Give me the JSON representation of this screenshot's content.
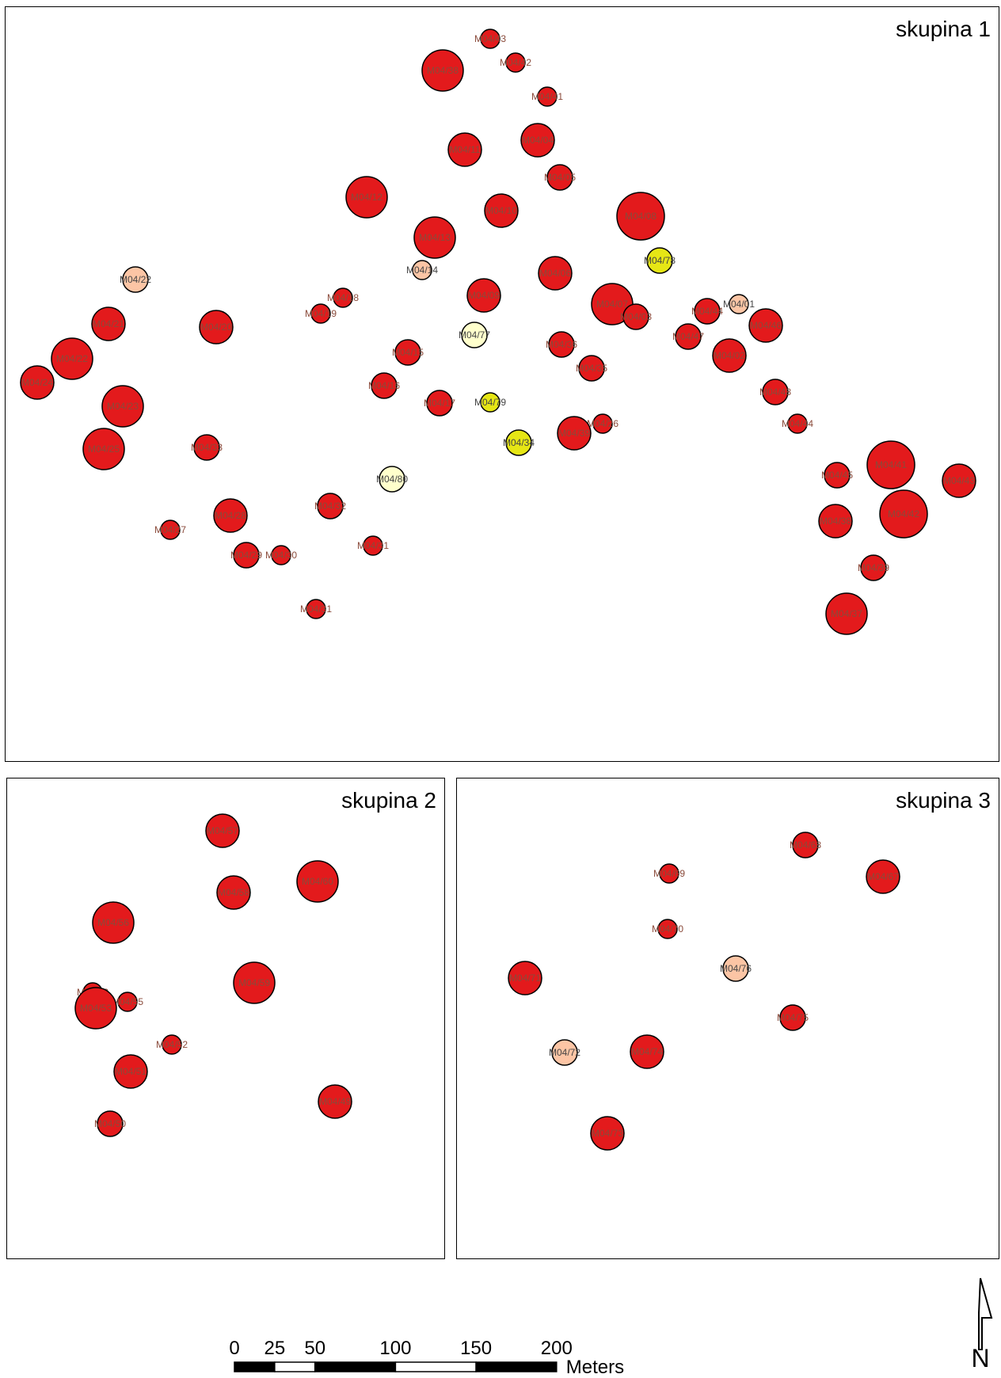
{
  "panels": [
    {
      "id": "1",
      "title": "skupina 1"
    },
    {
      "id": "2",
      "title": "skupina 2"
    },
    {
      "id": "3",
      "title": "skupina 3"
    }
  ],
  "legend_colors": {
    "red": "#e31a1c",
    "peach": "#fcc5a5",
    "cream": "#ffffcc",
    "yellow": "#e6e615",
    "stroke": "#000000"
  },
  "scalebar": {
    "ticks": [
      "0",
      "25",
      "50",
      "100",
      "150",
      "200"
    ],
    "unit": "Meters"
  },
  "north_arrow": {
    "letter": "N"
  },
  "points": {
    "1": [
      {
        "label": "M04/43",
        "color": "red",
        "size": "xs"
      },
      {
        "label": "M04/42",
        "color": "red",
        "size": "xs"
      },
      {
        "label": "M04/38",
        "color": "red",
        "size": "lg"
      },
      {
        "label": "M04/41",
        "color": "red",
        "size": "xs"
      },
      {
        "label": "M04/04",
        "color": "red",
        "size": "md"
      },
      {
        "label": "M04/11",
        "color": "red",
        "size": "md"
      },
      {
        "label": "M04/05",
        "color": "red",
        "size": "sm"
      },
      {
        "label": "M04/12",
        "color": "red",
        "size": "lg"
      },
      {
        "label": "M04/10",
        "color": "red",
        "size": "md"
      },
      {
        "label": "M04/08",
        "color": "red",
        "size": "xl"
      },
      {
        "label": "M04/13",
        "color": "red",
        "size": "lg"
      },
      {
        "label": "M04/78",
        "color": "yellow",
        "size": "sm"
      },
      {
        "label": "M04/14",
        "color": "peach",
        "size": "xs"
      },
      {
        "label": "M04/22",
        "color": "peach",
        "size": "sm"
      },
      {
        "label": "M04/06",
        "color": "red",
        "size": "md"
      },
      {
        "label": "M04/09",
        "color": "red",
        "size": "md"
      },
      {
        "label": "M04/18",
        "color": "red",
        "size": "xs"
      },
      {
        "label": "M04/07",
        "color": "red",
        "size": "lg"
      },
      {
        "label": "M04/01",
        "color": "peach",
        "size": "xs"
      },
      {
        "label": "M04/19",
        "color": "red",
        "size": "xs"
      },
      {
        "label": "M04/03",
        "color": "red",
        "size": "sm"
      },
      {
        "label": "M04/44",
        "color": "red",
        "size": "sm"
      },
      {
        "label": "M04/21",
        "color": "red",
        "size": "md"
      },
      {
        "label": "M04/20",
        "color": "red",
        "size": "md"
      },
      {
        "label": "M04/77",
        "color": "cream",
        "size": "sm"
      },
      {
        "label": "M04/46",
        "color": "red",
        "size": "md"
      },
      {
        "label": "M04/47",
        "color": "red",
        "size": "sm"
      },
      {
        "label": "M04/36",
        "color": "red",
        "size": "sm"
      },
      {
        "label": "M04/02",
        "color": "red",
        "size": "md"
      },
      {
        "label": "M04/22",
        "color": "red",
        "size": "lg"
      },
      {
        "label": "M04/15",
        "color": "red",
        "size": "sm"
      },
      {
        "label": "M04/35",
        "color": "red",
        "size": "sm"
      },
      {
        "label": "M04/24",
        "color": "red",
        "size": "md"
      },
      {
        "label": "M04/16",
        "color": "red",
        "size": "sm"
      },
      {
        "label": "M04/48",
        "color": "red",
        "size": "sm"
      },
      {
        "label": "M04/17",
        "color": "red",
        "size": "sm"
      },
      {
        "label": "M04/79",
        "color": "yellow",
        "size": "xs"
      },
      {
        "label": "M04/23",
        "color": "red",
        "size": "lg"
      },
      {
        "label": "M04/44",
        "color": "red",
        "size": "xs"
      },
      {
        "label": "M04/26",
        "color": "red",
        "size": "xs"
      },
      {
        "label": "M04/39",
        "color": "red",
        "size": "md"
      },
      {
        "label": "M04/25",
        "color": "red",
        "size": "lg"
      },
      {
        "label": "M04/33",
        "color": "red",
        "size": "sm"
      },
      {
        "label": "M04/34",
        "color": "yellow",
        "size": "sm"
      },
      {
        "label": "M04/41",
        "color": "red",
        "size": "xl"
      },
      {
        "label": "M04/80",
        "color": "cream",
        "size": "sm"
      },
      {
        "label": "M04/45",
        "color": "red",
        "size": "sm"
      },
      {
        "label": "M04/43",
        "color": "red",
        "size": "md"
      },
      {
        "label": "M04/32",
        "color": "red",
        "size": "sm"
      },
      {
        "label": "M04/28",
        "color": "red",
        "size": "md"
      },
      {
        "label": "M04/42",
        "color": "red",
        "size": "xl"
      },
      {
        "label": "M04/38",
        "color": "red",
        "size": "md"
      },
      {
        "label": "M04/27",
        "color": "red",
        "size": "xs"
      },
      {
        "label": "M04/31",
        "color": "red",
        "size": "xs"
      },
      {
        "label": "M04/29",
        "color": "red",
        "size": "sm"
      },
      {
        "label": "M04/30",
        "color": "red",
        "size": "xs"
      },
      {
        "label": "M04/39",
        "color": "red",
        "size": "sm"
      },
      {
        "label": "M04/31",
        "color": "red",
        "size": "xs"
      },
      {
        "label": "M04/37",
        "color": "red",
        "size": "lg"
      }
    ],
    "2": [
      {
        "label": "M04/57",
        "color": "red",
        "size": "md"
      },
      {
        "label": "M04/60",
        "color": "red",
        "size": "lg"
      },
      {
        "label": "M04/58",
        "color": "red",
        "size": "md"
      },
      {
        "label": "M04/56",
        "color": "red",
        "size": "lg"
      },
      {
        "label": "M04/59",
        "color": "red",
        "size": "lg"
      },
      {
        "label": "M04/53",
        "color": "red",
        "size": "xs"
      },
      {
        "label": "M04/55",
        "color": "red",
        "size": "xs"
      },
      {
        "label": "M04/53",
        "color": "red",
        "size": "lg"
      },
      {
        "label": "M04/52",
        "color": "red",
        "size": "xs"
      },
      {
        "label": "M04/51",
        "color": "red",
        "size": "md"
      },
      {
        "label": "M04/49",
        "color": "red",
        "size": "md"
      },
      {
        "label": "M04/50",
        "color": "red",
        "size": "sm"
      }
    ],
    "3": [
      {
        "label": "M04/68",
        "color": "red",
        "size": "sm"
      },
      {
        "label": "M04/67",
        "color": "red",
        "size": "md"
      },
      {
        "label": "M04/69",
        "color": "red",
        "size": "xs"
      },
      {
        "label": "M04/70",
        "color": "red",
        "size": "xs"
      },
      {
        "label": "M04/76",
        "color": "peach",
        "size": "sm"
      },
      {
        "label": "M04/71",
        "color": "red",
        "size": "md"
      },
      {
        "label": "M04/75",
        "color": "red",
        "size": "sm"
      },
      {
        "label": "M04/72",
        "color": "peach",
        "size": "sm"
      },
      {
        "label": "M04/74",
        "color": "red",
        "size": "md"
      },
      {
        "label": "M04/73",
        "color": "red",
        "size": "md"
      }
    ]
  }
}
